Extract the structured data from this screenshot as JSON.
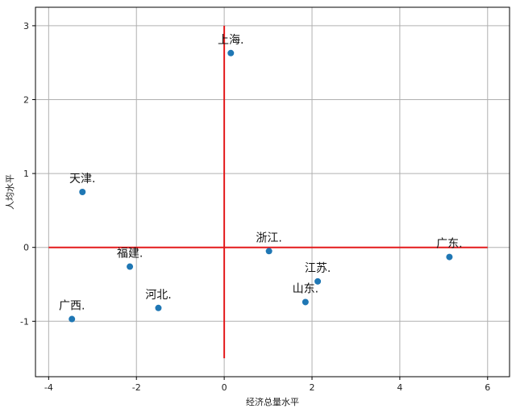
{
  "chart_data": {
    "type": "scatter",
    "xlabel": "经济总量水平",
    "ylabel": "人均水平",
    "xlim": [
      -4.3,
      6.5
    ],
    "ylim": [
      -1.75,
      3.25
    ],
    "xticks": [
      -4,
      -2,
      0,
      2,
      4,
      6
    ],
    "yticks": [
      -1,
      0,
      1,
      2,
      3
    ],
    "xtick_labels": [
      "-4",
      "-2",
      "0",
      "2",
      "4",
      "6"
    ],
    "ytick_labels": [
      "-1",
      "0",
      "1",
      "2",
      "3"
    ],
    "grid": true,
    "point_color": "#1f77b4",
    "reference_line_color": "#e31a1c",
    "reference_lines": {
      "horizontal": {
        "y": 0,
        "x_from": -4,
        "x_to": 6
      },
      "vertical": {
        "x": 0,
        "y_from": -1.5,
        "y_to": 3
      }
    },
    "points": [
      {
        "label": "上海.",
        "x": 0.15,
        "y": 2.63
      },
      {
        "label": "天津.",
        "x": -3.23,
        "y": 0.75
      },
      {
        "label": "浙江.",
        "x": 1.02,
        "y": -0.05
      },
      {
        "label": "广东.",
        "x": 5.13,
        "y": -0.13
      },
      {
        "label": "福建.",
        "x": -2.15,
        "y": -0.26
      },
      {
        "label": "江苏.",
        "x": 2.13,
        "y": -0.46
      },
      {
        "label": "山东.",
        "x": 1.85,
        "y": -0.74
      },
      {
        "label": "河北.",
        "x": -1.5,
        "y": -0.82
      },
      {
        "label": "广西.",
        "x": -3.47,
        "y": -0.97
      }
    ]
  }
}
